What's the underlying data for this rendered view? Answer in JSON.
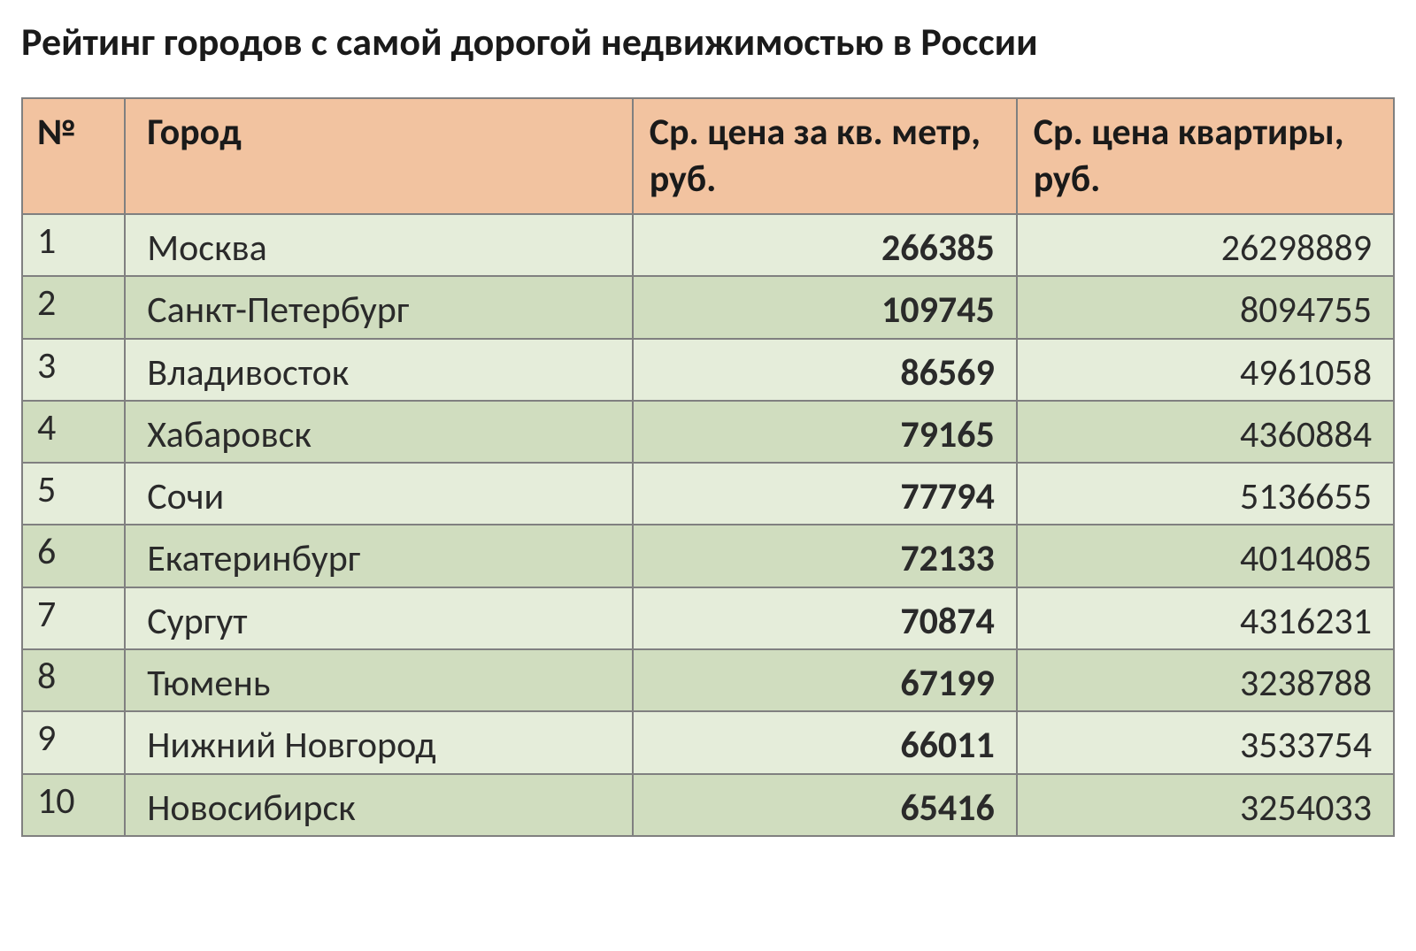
{
  "title": "Рейтинг городов с самой дорогой недвижимостью в России",
  "table": {
    "type": "table",
    "header_bg_color": "#f2c3a0",
    "row_odd_bg_color": "#e5edda",
    "row_even_bg_color": "#d0ddbf",
    "border_color": "#808080",
    "text_color": "#2a2a2a",
    "header_fontsize": 42,
    "cell_fontsize": 42,
    "columns": [
      {
        "key": "num",
        "label": "№",
        "align": "left",
        "width_pct": 7.5
      },
      {
        "key": "city",
        "label": "Город",
        "align": "left",
        "width_pct": 37
      },
      {
        "key": "price_sqm",
        "label": "Ср. цена за кв. метр, руб.",
        "align": "right",
        "bold": true,
        "width_pct": 28
      },
      {
        "key": "price_flat",
        "label": "Ср. цена квартиры, руб.",
        "align": "right",
        "width_pct": 27.5
      }
    ],
    "rows": [
      {
        "num": "1",
        "city": "Москва",
        "price_sqm": "266385",
        "price_flat": "26298889"
      },
      {
        "num": "2",
        "city": "Санкт-Петербург",
        "price_sqm": "109745",
        "price_flat": "8094755"
      },
      {
        "num": "3",
        "city": "Владивосток",
        "price_sqm": "86569",
        "price_flat": "4961058"
      },
      {
        "num": "4",
        "city": "Хабаровск",
        "price_sqm": "79165",
        "price_flat": "4360884"
      },
      {
        "num": "5",
        "city": "Сочи",
        "price_sqm": "77794",
        "price_flat": "5136655"
      },
      {
        "num": "6",
        "city": "Екатеринбург",
        "price_sqm": "72133",
        "price_flat": "4014085"
      },
      {
        "num": "7",
        "city": "Сургут",
        "price_sqm": "70874",
        "price_flat": "4316231"
      },
      {
        "num": "8",
        "city": "Тюмень",
        "price_sqm": "67199",
        "price_flat": "3238788"
      },
      {
        "num": "9",
        "city": "Нижний Новгород",
        "price_sqm": "66011",
        "price_flat": "3533754"
      },
      {
        "num": "10",
        "city": "Новосибирск",
        "price_sqm": "65416",
        "price_flat": "3254033"
      }
    ]
  }
}
